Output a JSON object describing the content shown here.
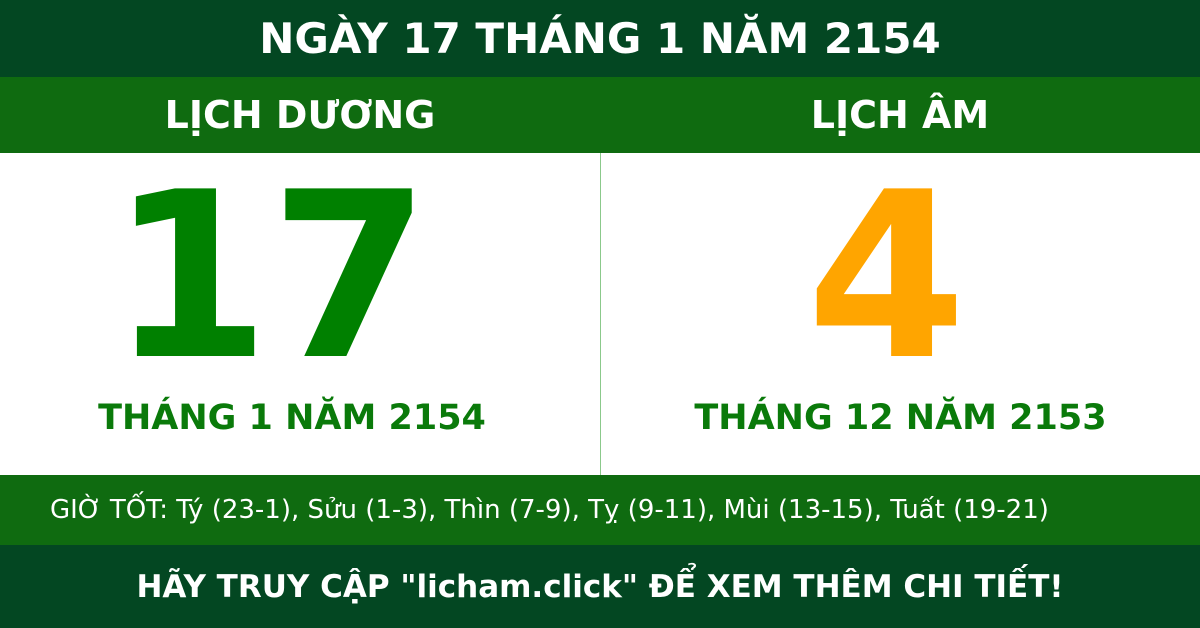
{
  "title": "NGÀY 17 THÁNG 1 NĂM 2154",
  "solar": {
    "heading": "LỊCH DƯƠNG",
    "day": "17",
    "month_year": "THÁNG 1 NĂM 2154"
  },
  "lunar": {
    "heading": "LỊCH ÂM",
    "day": "4",
    "month_year": "THÁNG 12 NĂM 2153"
  },
  "good_hours": "GIỜ TỐT: Tý (23-1), Sửu (1-3), Thìn (7-9), Tỵ (9-11), Mùi (13-15), Tuất (19-21)",
  "footer": "HÃY TRUY CẬP \"licham.click\" ĐỂ XEM THÊM CHI TIẾT!",
  "colors": {
    "dark_green": "#034722",
    "band_green": "#0f6b10",
    "solar_day": "#008000",
    "lunar_day": "#ffa500"
  }
}
